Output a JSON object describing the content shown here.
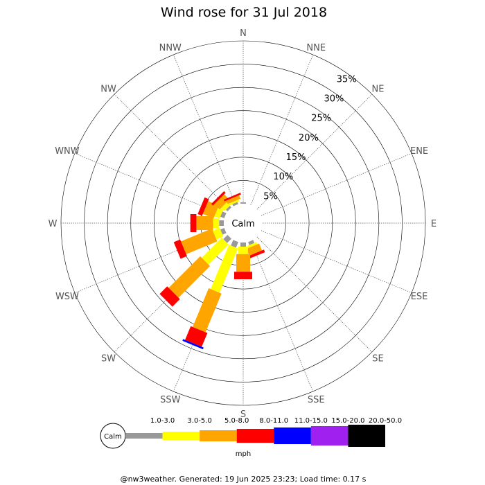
{
  "chart_data": {
    "type": "windrose",
    "title": "Wind rose for 31 Jul 2018",
    "directions": [
      "N",
      "NNE",
      "NE",
      "ENE",
      "E",
      "ESE",
      "SE",
      "SSE",
      "S",
      "SSW",
      "SW",
      "WSW",
      "W",
      "WNW",
      "NW",
      "NNW"
    ],
    "ring_labels": [
      "5%",
      "10%",
      "15%",
      "20%",
      "25%",
      "30%",
      "35%"
    ],
    "ring_values": [
      5,
      10,
      15,
      20,
      25,
      30,
      35
    ],
    "max_percent": 35,
    "calm_label": "Calm",
    "unit": "mph",
    "speed_bins": [
      {
        "label": "1.0-3.0",
        "color": "#999999"
      },
      {
        "label": "3.0-5.0",
        "color": "#ffff00"
      },
      {
        "label": "5.0-8.0",
        "color": "#ffa500"
      },
      {
        "label": "8.0-11.0",
        "color": "#ff0000"
      },
      {
        "label": "11.0-15.0",
        "color": "#0000ff"
      },
      {
        "label": "15.0-20.0",
        "color": "#a020f0"
      },
      {
        "label": "20.0-50.0",
        "color": "#000000"
      }
    ],
    "series": [
      {
        "direction": "N",
        "values": [
          0.3,
          0,
          0,
          0,
          0,
          0,
          0
        ]
      },
      {
        "direction": "NNE",
        "values": [
          0,
          0,
          0,
          0,
          0,
          0,
          0
        ]
      },
      {
        "direction": "NE",
        "values": [
          0,
          0,
          0,
          0,
          0,
          0,
          0
        ]
      },
      {
        "direction": "ENE",
        "values": [
          0,
          0,
          0,
          0,
          0,
          0,
          0
        ]
      },
      {
        "direction": "E",
        "values": [
          0,
          0,
          0,
          0,
          0,
          0,
          0
        ]
      },
      {
        "direction": "ESE",
        "values": [
          0,
          0,
          0,
          0,
          0,
          0,
          0
        ]
      },
      {
        "direction": "SE",
        "values": [
          0,
          0,
          0,
          0,
          0,
          0,
          0
        ]
      },
      {
        "direction": "SSE",
        "values": [
          0.7,
          0.5,
          1.6,
          0.6,
          0,
          0,
          0
        ]
      },
      {
        "direction": "S",
        "values": [
          0.9,
          1.6,
          3.8,
          1.6,
          0,
          0,
          0
        ]
      },
      {
        "direction": "SSW",
        "values": [
          1.3,
          10.3,
          9.0,
          3.2,
          0.4,
          0,
          0
        ]
      },
      {
        "direction": "SW",
        "values": [
          1.3,
          6.1,
          9.6,
          2.3,
          0,
          0,
          0
        ]
      },
      {
        "direction": "WSW",
        "values": [
          0.9,
          1.6,
          7.2,
          1.5,
          0,
          0,
          0
        ]
      },
      {
        "direction": "W",
        "values": [
          1.0,
          1.3,
          3.6,
          1.3,
          0,
          0,
          0
        ]
      },
      {
        "direction": "WNW",
        "values": [
          0.9,
          1.2,
          2.5,
          1.0,
          0,
          0,
          0
        ]
      },
      {
        "direction": "NW",
        "values": [
          0.5,
          1.0,
          1.6,
          0.5,
          0,
          0,
          0
        ]
      },
      {
        "direction": "NNW",
        "values": [
          0.5,
          0.4,
          0.8,
          0.4,
          0,
          0,
          0
        ]
      }
    ],
    "footer": "@nw3weather. Generated: 19 Jun 2025 23:23; Load time: 0.17 s"
  }
}
